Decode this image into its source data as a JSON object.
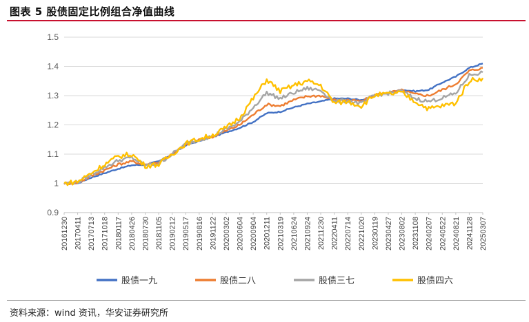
{
  "header": {
    "title": "图表 5  股债固定比例组合净值曲线"
  },
  "footer": {
    "source": "资料来源：wind 资讯，华安证券研究所"
  },
  "chart_data": {
    "type": "line",
    "title": "股债固定比例组合净值曲线",
    "xlabel": "",
    "ylabel": "",
    "ylim": [
      0.9,
      1.5
    ],
    "yticks": [
      "0.9",
      "1",
      "1.1",
      "1.2",
      "1.3",
      "1.4",
      "1.5"
    ],
    "grid": true,
    "legend_position": "bottom",
    "categories": [
      "20161230",
      "20170411",
      "20170713",
      "20171018",
      "20180117",
      "20180426",
      "20180730",
      "20181105",
      "20190212",
      "20190517",
      "20190816",
      "20191122",
      "20200302",
      "20200604",
      "20200904",
      "20201211",
      "20210319",
      "20210624",
      "20210924",
      "20211230",
      "20220411",
      "20220714",
      "20221020",
      "20230119",
      "20230427",
      "20230802",
      "20231108",
      "20240207",
      "20240522",
      "20240821",
      "20241128",
      "20250307"
    ],
    "series": [
      {
        "name": "股债一九",
        "color": "#4472C4",
        "values": [
          1.0,
          1.0,
          1.02,
          1.035,
          1.05,
          1.062,
          1.064,
          1.075,
          1.1,
          1.13,
          1.145,
          1.158,
          1.175,
          1.19,
          1.21,
          1.24,
          1.245,
          1.26,
          1.272,
          1.28,
          1.29,
          1.29,
          1.285,
          1.3,
          1.31,
          1.32,
          1.315,
          1.32,
          1.345,
          1.365,
          1.395,
          1.41
        ]
      },
      {
        "name": "股债二八",
        "color": "#ED7D31",
        "values": [
          1.0,
          1.002,
          1.025,
          1.045,
          1.065,
          1.075,
          1.065,
          1.072,
          1.1,
          1.132,
          1.148,
          1.16,
          1.18,
          1.2,
          1.235,
          1.27,
          1.265,
          1.285,
          1.298,
          1.3,
          1.285,
          1.285,
          1.28,
          1.302,
          1.31,
          1.318,
          1.305,
          1.3,
          1.32,
          1.34,
          1.385,
          1.395
        ]
      },
      {
        "name": "股债三七",
        "color": "#A5A5A5",
        "values": [
          1.0,
          1.004,
          1.03,
          1.055,
          1.078,
          1.088,
          1.062,
          1.068,
          1.1,
          1.134,
          1.15,
          1.162,
          1.185,
          1.21,
          1.26,
          1.31,
          1.29,
          1.31,
          1.325,
          1.318,
          1.28,
          1.283,
          1.272,
          1.302,
          1.308,
          1.315,
          1.29,
          1.28,
          1.292,
          1.308,
          1.37,
          1.38
        ]
      },
      {
        "name": "股债四六",
        "color": "#FFC000",
        "values": [
          1.0,
          1.006,
          1.035,
          1.065,
          1.092,
          1.1,
          1.06,
          1.065,
          1.1,
          1.136,
          1.152,
          1.165,
          1.19,
          1.225,
          1.29,
          1.355,
          1.315,
          1.335,
          1.35,
          1.335,
          1.275,
          1.28,
          1.265,
          1.302,
          1.305,
          1.31,
          1.28,
          1.255,
          1.265,
          1.275,
          1.352,
          1.36
        ]
      }
    ]
  }
}
